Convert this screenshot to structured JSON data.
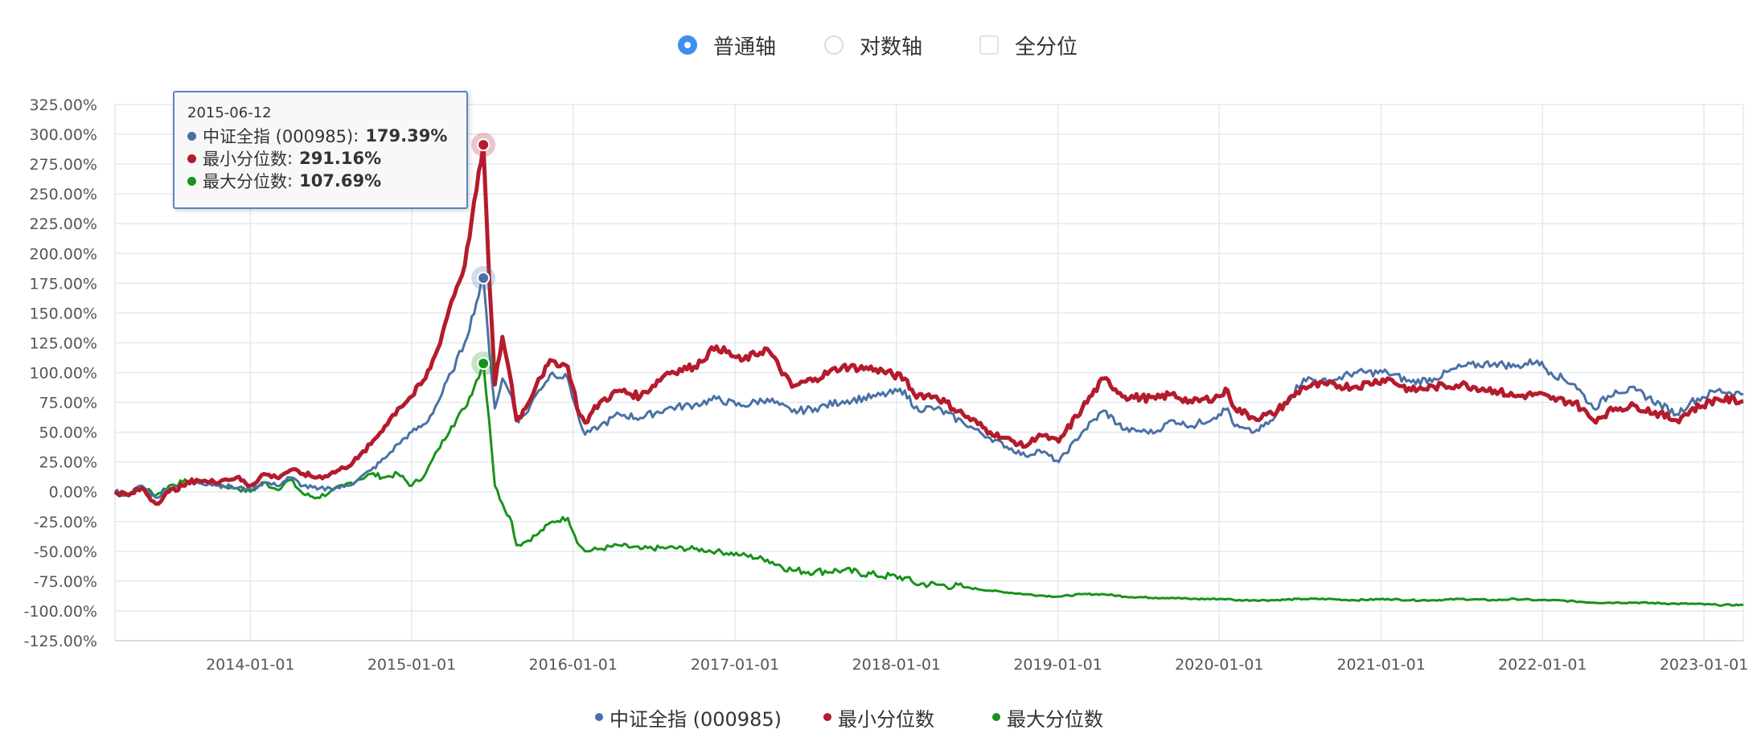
{
  "options": [
    {
      "label": "普通轴",
      "type": "radio",
      "checked": true
    },
    {
      "label": "对数轴",
      "type": "radio",
      "checked": false
    },
    {
      "label": "全分位",
      "type": "checkbox",
      "checked": false
    }
  ],
  "colors": {
    "index": "#4a71a6",
    "min_quantile": "#b41b2c",
    "max_quantile": "#17931a",
    "grid": "#e3e8f0",
    "accent": "#3d8ef0"
  },
  "tooltip": {
    "date": "2015-06-12",
    "rows": [
      {
        "name": "中证全指 (000985)",
        "value": "179.39%",
        "color": "#4a71a6"
      },
      {
        "name": "最小分位数",
        "value": "291.16%",
        "color": "#b41b2c"
      },
      {
        "name": "最大分位数",
        "value": "107.69%",
        "color": "#17931a"
      }
    ]
  },
  "chart_data": {
    "type": "line",
    "title": "",
    "xlabel": "",
    "ylabel": "",
    "ylim": [
      -125,
      325
    ],
    "y_ticks": [
      325,
      300,
      275,
      250,
      225,
      200,
      175,
      150,
      125,
      100,
      75,
      50,
      25,
      0,
      -25,
      -50,
      -75,
      -100,
      -125
    ],
    "y_tick_labels": [
      "325.00%",
      "300.00%",
      "275.00%",
      "250.00%",
      "225.00%",
      "200.00%",
      "175.00%",
      "150.00%",
      "125.00%",
      "100.00%",
      "75.00%",
      "50.00%",
      "25.00%",
      "0.00%",
      "-25.00%",
      "-50.00%",
      "-75.00%",
      "-100.00%",
      "-125.00%"
    ],
    "x_range": [
      "2013-03-01",
      "2023-03-31"
    ],
    "x_ticks": [
      "2014-01-01",
      "2015-01-01",
      "2016-01-01",
      "2017-01-01",
      "2018-01-01",
      "2019-01-01",
      "2020-01-01",
      "2021-01-01",
      "2022-01-01",
      "2023-01-01"
    ],
    "grid": true,
    "legend_position": "bottom",
    "highlight_date": "2015-06-12",
    "series": [
      {
        "name": "中证全指 (000985)",
        "color": "#4a71a6",
        "points": [
          [
            "2013-03-01",
            0
          ],
          [
            "2013-04-01",
            -2
          ],
          [
            "2013-05-01",
            5
          ],
          [
            "2013-06-01",
            -5
          ],
          [
            "2013-07-01",
            3
          ],
          [
            "2013-08-01",
            6
          ],
          [
            "2013-09-01",
            8
          ],
          [
            "2013-10-01",
            7
          ],
          [
            "2013-11-01",
            5
          ],
          [
            "2013-12-01",
            3
          ],
          [
            "2014-01-01",
            2
          ],
          [
            "2014-02-01",
            8
          ],
          [
            "2014-03-01",
            5
          ],
          [
            "2014-04-01",
            12
          ],
          [
            "2014-05-01",
            5
          ],
          [
            "2014-06-01",
            2
          ],
          [
            "2014-07-01",
            3
          ],
          [
            "2014-08-01",
            4
          ],
          [
            "2014-09-01",
            10
          ],
          [
            "2014-10-01",
            18
          ],
          [
            "2014-11-01",
            28
          ],
          [
            "2014-12-01",
            40
          ],
          [
            "2015-01-01",
            50
          ],
          [
            "2015-02-01",
            57
          ],
          [
            "2015-03-01",
            75
          ],
          [
            "2015-04-01",
            100
          ],
          [
            "2015-05-01",
            125
          ],
          [
            "2015-06-12",
            179.39
          ],
          [
            "2015-06-25",
            120
          ],
          [
            "2015-07-08",
            70
          ],
          [
            "2015-07-25",
            95
          ],
          [
            "2015-08-15",
            80
          ],
          [
            "2015-08-26",
            60
          ],
          [
            "2015-09-15",
            65
          ],
          [
            "2015-10-15",
            85
          ],
          [
            "2015-11-15",
            100
          ],
          [
            "2015-12-20",
            95
          ],
          [
            "2016-01-15",
            60
          ],
          [
            "2016-01-28",
            48
          ],
          [
            "2016-03-01",
            55
          ],
          [
            "2016-04-15",
            65
          ],
          [
            "2016-06-01",
            62
          ],
          [
            "2016-08-01",
            70
          ],
          [
            "2016-10-01",
            73
          ],
          [
            "2016-11-20",
            78
          ],
          [
            "2017-01-15",
            72
          ],
          [
            "2017-03-15",
            78
          ],
          [
            "2017-05-10",
            67
          ],
          [
            "2017-07-01",
            70
          ],
          [
            "2017-09-01",
            76
          ],
          [
            "2017-11-15",
            80
          ],
          [
            "2018-01-20",
            85
          ],
          [
            "2018-02-10",
            70
          ],
          [
            "2018-04-01",
            70
          ],
          [
            "2018-06-01",
            58
          ],
          [
            "2018-08-01",
            45
          ],
          [
            "2018-10-20",
            30
          ],
          [
            "2018-11-20",
            35
          ],
          [
            "2019-01-03",
            25
          ],
          [
            "2019-02-25",
            50
          ],
          [
            "2019-04-15",
            68
          ],
          [
            "2019-06-01",
            52
          ],
          [
            "2019-08-10",
            50
          ],
          [
            "2019-09-15",
            60
          ],
          [
            "2019-11-01",
            55
          ],
          [
            "2019-12-31",
            65
          ],
          [
            "2020-01-20",
            70
          ],
          [
            "2020-02-05",
            55
          ],
          [
            "2020-03-20",
            50
          ],
          [
            "2020-05-01",
            60
          ],
          [
            "2020-07-10",
            95
          ],
          [
            "2020-09-01",
            92
          ],
          [
            "2020-11-01",
            100
          ],
          [
            "2021-01-15",
            100
          ],
          [
            "2021-03-10",
            92
          ],
          [
            "2021-05-01",
            95
          ],
          [
            "2021-07-01",
            105
          ],
          [
            "2021-09-15",
            108
          ],
          [
            "2021-11-01",
            105
          ],
          [
            "2021-12-20",
            110
          ],
          [
            "2022-01-20",
            100
          ],
          [
            "2022-03-15",
            90
          ],
          [
            "2022-04-26",
            70
          ],
          [
            "2022-06-15",
            85
          ],
          [
            "2022-08-01",
            85
          ],
          [
            "2022-10-31",
            65
          ],
          [
            "2022-12-01",
            75
          ],
          [
            "2023-01-31",
            85
          ],
          [
            "2023-03-31",
            82
          ]
        ]
      },
      {
        "name": "最小分位数",
        "color": "#b41b2c",
        "points": [
          [
            "2013-03-01",
            0
          ],
          [
            "2013-04-01",
            -3
          ],
          [
            "2013-05-01",
            3
          ],
          [
            "2013-06-01",
            -10
          ],
          [
            "2013-07-01",
            0
          ],
          [
            "2013-08-01",
            5
          ],
          [
            "2013-09-01",
            10
          ],
          [
            "2013-10-01",
            8
          ],
          [
            "2013-11-01",
            10
          ],
          [
            "2013-12-01",
            12
          ],
          [
            "2014-01-01",
            5
          ],
          [
            "2014-02-01",
            15
          ],
          [
            "2014-03-01",
            12
          ],
          [
            "2014-04-01",
            18
          ],
          [
            "2014-05-01",
            15
          ],
          [
            "2014-06-01",
            12
          ],
          [
            "2014-07-01",
            15
          ],
          [
            "2014-08-01",
            20
          ],
          [
            "2014-09-01",
            28
          ],
          [
            "2014-10-01",
            40
          ],
          [
            "2014-11-01",
            55
          ],
          [
            "2014-12-01",
            70
          ],
          [
            "2015-01-01",
            80
          ],
          [
            "2015-02-01",
            95
          ],
          [
            "2015-03-01",
            120
          ],
          [
            "2015-04-01",
            160
          ],
          [
            "2015-05-01",
            190
          ],
          [
            "2015-06-12",
            291.16
          ],
          [
            "2015-06-25",
            180
          ],
          [
            "2015-07-08",
            90
          ],
          [
            "2015-07-25",
            130
          ],
          [
            "2015-08-15",
            90
          ],
          [
            "2015-08-26",
            60
          ],
          [
            "2015-09-15",
            70
          ],
          [
            "2015-10-15",
            95
          ],
          [
            "2015-11-15",
            110
          ],
          [
            "2015-12-20",
            105
          ],
          [
            "2016-01-15",
            65
          ],
          [
            "2016-01-28",
            58
          ],
          [
            "2016-03-01",
            75
          ],
          [
            "2016-04-15",
            85
          ],
          [
            "2016-06-01",
            80
          ],
          [
            "2016-08-01",
            100
          ],
          [
            "2016-10-01",
            105
          ],
          [
            "2016-11-20",
            122
          ],
          [
            "2017-01-15",
            110
          ],
          [
            "2017-03-15",
            120
          ],
          [
            "2017-05-10",
            88
          ],
          [
            "2017-07-01",
            95
          ],
          [
            "2017-09-01",
            105
          ],
          [
            "2017-11-15",
            103
          ],
          [
            "2018-01-20",
            95
          ],
          [
            "2018-02-10",
            82
          ],
          [
            "2018-04-01",
            80
          ],
          [
            "2018-06-01",
            65
          ],
          [
            "2018-08-01",
            50
          ],
          [
            "2018-10-20",
            38
          ],
          [
            "2018-11-20",
            48
          ],
          [
            "2019-01-03",
            42
          ],
          [
            "2019-02-25",
            70
          ],
          [
            "2019-04-15",
            95
          ],
          [
            "2019-06-01",
            80
          ],
          [
            "2019-08-10",
            78
          ],
          [
            "2019-09-15",
            82
          ],
          [
            "2019-11-01",
            75
          ],
          [
            "2019-12-31",
            80
          ],
          [
            "2020-01-20",
            85
          ],
          [
            "2020-02-05",
            70
          ],
          [
            "2020-03-20",
            62
          ],
          [
            "2020-05-01",
            65
          ],
          [
            "2020-07-10",
            88
          ],
          [
            "2020-09-01",
            90
          ],
          [
            "2020-11-01",
            88
          ],
          [
            "2021-01-15",
            95
          ],
          [
            "2021-03-10",
            85
          ],
          [
            "2021-05-01",
            88
          ],
          [
            "2021-07-01",
            90
          ],
          [
            "2021-09-15",
            85
          ],
          [
            "2021-11-01",
            80
          ],
          [
            "2021-12-20",
            82
          ],
          [
            "2022-01-20",
            78
          ],
          [
            "2022-03-15",
            75
          ],
          [
            "2022-04-26",
            60
          ],
          [
            "2022-06-15",
            70
          ],
          [
            "2022-08-01",
            72
          ],
          [
            "2022-10-31",
            60
          ],
          [
            "2022-12-01",
            68
          ],
          [
            "2023-01-31",
            78
          ],
          [
            "2023-03-31",
            76
          ]
        ]
      },
      {
        "name": "最大分位数",
        "color": "#17931a",
        "points": [
          [
            "2013-03-01",
            0
          ],
          [
            "2013-04-01",
            -3
          ],
          [
            "2013-05-01",
            5
          ],
          [
            "2013-06-01",
            -3
          ],
          [
            "2013-07-01",
            5
          ],
          [
            "2013-08-01",
            8
          ],
          [
            "2013-09-01",
            10
          ],
          [
            "2013-10-01",
            8
          ],
          [
            "2013-11-01",
            5
          ],
          [
            "2013-12-01",
            3
          ],
          [
            "2014-01-01",
            0
          ],
          [
            "2014-02-01",
            8
          ],
          [
            "2014-03-01",
            2
          ],
          [
            "2014-04-01",
            10
          ],
          [
            "2014-05-01",
            -2
          ],
          [
            "2014-06-01",
            -5
          ],
          [
            "2014-07-01",
            0
          ],
          [
            "2014-08-01",
            5
          ],
          [
            "2014-09-01",
            10
          ],
          [
            "2014-10-01",
            15
          ],
          [
            "2014-11-01",
            12
          ],
          [
            "2014-12-01",
            15
          ],
          [
            "2015-01-01",
            5
          ],
          [
            "2015-02-01",
            15
          ],
          [
            "2015-03-01",
            35
          ],
          [
            "2015-04-01",
            55
          ],
          [
            "2015-05-01",
            70
          ],
          [
            "2015-06-12",
            107.69
          ],
          [
            "2015-06-25",
            60
          ],
          [
            "2015-07-08",
            5
          ],
          [
            "2015-07-25",
            -10
          ],
          [
            "2015-08-15",
            -25
          ],
          [
            "2015-08-26",
            -45
          ],
          [
            "2015-09-15",
            -42
          ],
          [
            "2015-10-15",
            -35
          ],
          [
            "2015-11-15",
            -25
          ],
          [
            "2015-12-20",
            -22
          ],
          [
            "2016-01-15",
            -45
          ],
          [
            "2016-01-28",
            -50
          ],
          [
            "2016-03-01",
            -48
          ],
          [
            "2016-04-15",
            -45
          ],
          [
            "2016-06-01",
            -48
          ],
          [
            "2016-08-01",
            -47
          ],
          [
            "2016-10-01",
            -48
          ],
          [
            "2016-11-20",
            -50
          ],
          [
            "2017-01-15",
            -53
          ],
          [
            "2017-03-15",
            -57
          ],
          [
            "2017-05-10",
            -66
          ],
          [
            "2017-07-01",
            -67
          ],
          [
            "2017-09-01",
            -66
          ],
          [
            "2017-11-15",
            -70
          ],
          [
            "2018-01-20",
            -72
          ],
          [
            "2018-02-10",
            -77
          ],
          [
            "2018-04-01",
            -78
          ],
          [
            "2018-06-01",
            -80
          ],
          [
            "2018-08-01",
            -83
          ],
          [
            "2018-10-20",
            -86
          ],
          [
            "2018-11-20",
            -87
          ],
          [
            "2019-01-03",
            -88
          ],
          [
            "2019-02-25",
            -86
          ],
          [
            "2019-04-15",
            -86
          ],
          [
            "2019-06-01",
            -88
          ],
          [
            "2019-08-10",
            -89
          ],
          [
            "2019-09-15",
            -89
          ],
          [
            "2019-11-01",
            -90
          ],
          [
            "2019-12-31",
            -90
          ],
          [
            "2020-01-20",
            -90
          ],
          [
            "2020-02-05",
            -91
          ],
          [
            "2020-03-20",
            -91
          ],
          [
            "2020-05-01",
            -91
          ],
          [
            "2020-07-10",
            -90
          ],
          [
            "2020-09-01",
            -90
          ],
          [
            "2020-11-01",
            -91
          ],
          [
            "2021-01-15",
            -90
          ],
          [
            "2021-03-10",
            -91
          ],
          [
            "2021-05-01",
            -91
          ],
          [
            "2021-07-01",
            -90
          ],
          [
            "2021-09-15",
            -91
          ],
          [
            "2021-11-01",
            -90
          ],
          [
            "2021-12-20",
            -91
          ],
          [
            "2022-01-20",
            -91
          ],
          [
            "2022-03-15",
            -92
          ],
          [
            "2022-04-26",
            -93
          ],
          [
            "2022-06-15",
            -93
          ],
          [
            "2022-08-01",
            -93
          ],
          [
            "2022-10-31",
            -94
          ],
          [
            "2022-12-01",
            -94
          ],
          [
            "2023-01-31",
            -95
          ],
          [
            "2023-03-31",
            -95
          ]
        ]
      }
    ]
  }
}
